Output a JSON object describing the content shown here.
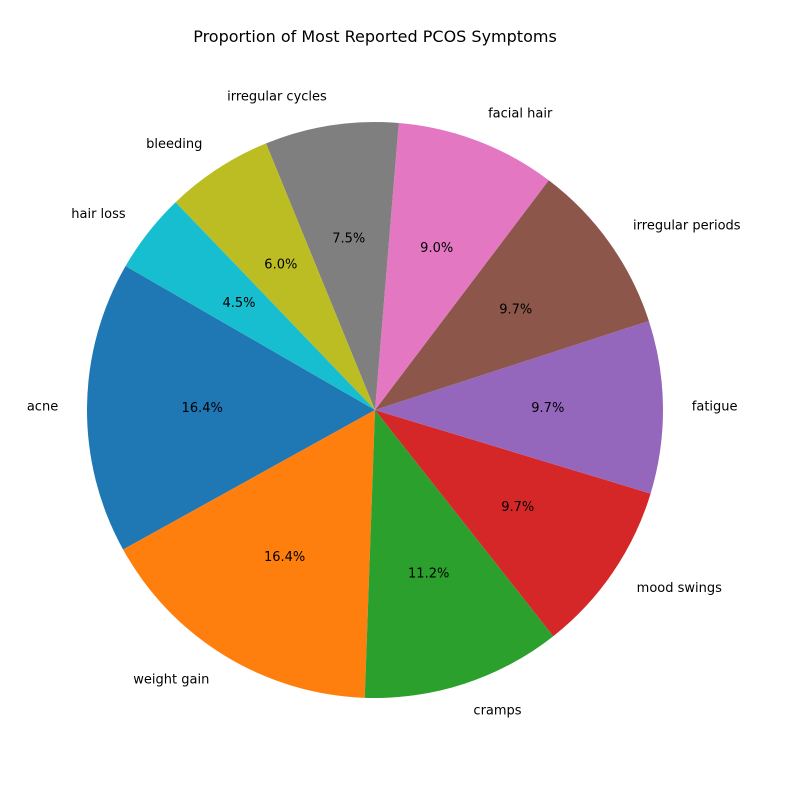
{
  "chart_data": {
    "type": "pie",
    "title": "Proportion of Most Reported PCOS Symptoms",
    "start_angle_deg": 150,
    "direction": "counterclockwise",
    "slices": [
      {
        "label": "acne",
        "value": 16.4,
        "pct_label": "16.4%",
        "color": "#1f77b4"
      },
      {
        "label": "weight gain",
        "value": 16.4,
        "pct_label": "16.4%",
        "color": "#ff7f0e"
      },
      {
        "label": "cramps",
        "value": 11.2,
        "pct_label": "11.2%",
        "color": "#2ca02c"
      },
      {
        "label": "mood swings",
        "value": 9.7,
        "pct_label": "9.7%",
        "color": "#d62728"
      },
      {
        "label": "fatigue",
        "value": 9.7,
        "pct_label": "9.7%",
        "color": "#9467bd"
      },
      {
        "label": "irregular periods",
        "value": 9.7,
        "pct_label": "9.7%",
        "color": "#8c564b"
      },
      {
        "label": "facial hair",
        "value": 9.0,
        "pct_label": "9.0%",
        "color": "#e377c2"
      },
      {
        "label": "irregular cycles",
        "value": 7.5,
        "pct_label": "7.5%",
        "color": "#7f7f7f"
      },
      {
        "label": "bleeding",
        "value": 6.0,
        "pct_label": "6.0%",
        "color": "#bcbd22"
      },
      {
        "label": "hair loss",
        "value": 4.5,
        "pct_label": "4.5%",
        "color": "#17becf"
      }
    ]
  }
}
